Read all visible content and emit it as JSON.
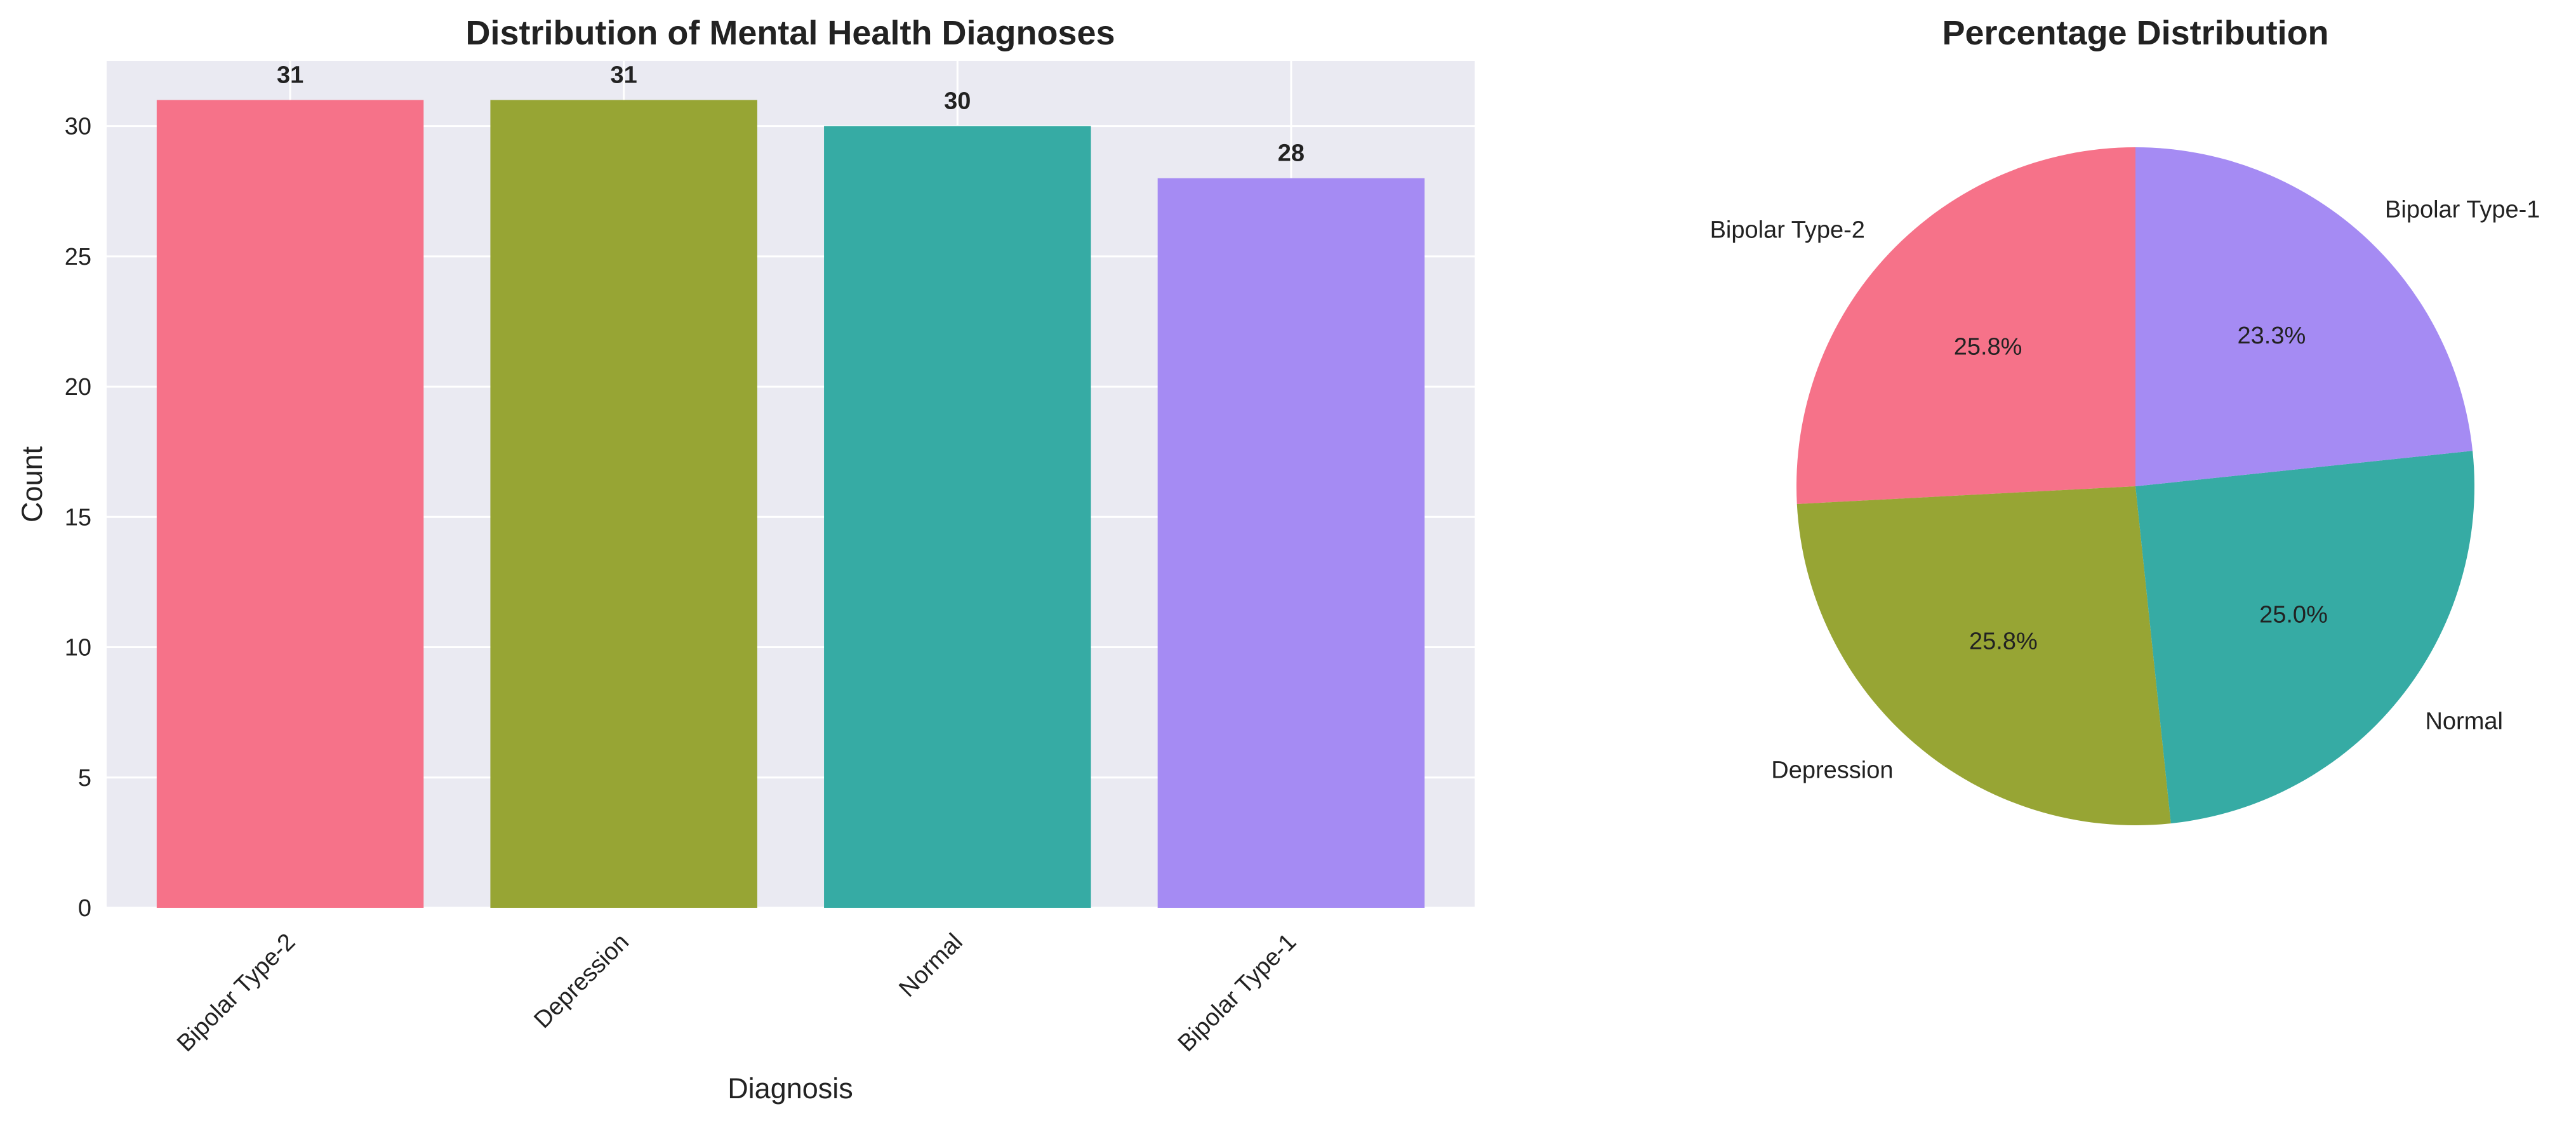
{
  "chart_data": [
    {
      "type": "bar",
      "title": "Distribution of Mental Health Diagnoses",
      "xlabel": "Diagnosis",
      "ylabel": "Count",
      "categories": [
        "Bipolar Type-2",
        "Depression",
        "Normal",
        "Bipolar Type-1"
      ],
      "values": [
        31,
        31,
        30,
        28
      ],
      "value_labels": [
        "31",
        "31",
        "30",
        "28"
      ],
      "colors": [
        "#f67289",
        "#97a534",
        "#36aba4",
        "#a58bf3"
      ],
      "ylim": [
        0,
        32.5
      ],
      "yticks": [
        0,
        5,
        10,
        15,
        20,
        25,
        30
      ],
      "ytick_labels": [
        "0",
        "5",
        "10",
        "15",
        "20",
        "25",
        "30"
      ],
      "grid": true,
      "background": "#eaeaf2"
    },
    {
      "type": "pie",
      "title": "Percentage Distribution",
      "labels": [
        "Bipolar Type-2",
        "Depression",
        "Normal",
        "Bipolar Type-1"
      ],
      "values": [
        31,
        31,
        30,
        28
      ],
      "percent_labels": [
        "25.8%",
        "25.8%",
        "25.0%",
        "23.3%"
      ],
      "colors": [
        "#f67289",
        "#97a534",
        "#36aba4",
        "#a58bf3"
      ],
      "start_angle_deg": 90,
      "direction": "counterclockwise"
    }
  ]
}
